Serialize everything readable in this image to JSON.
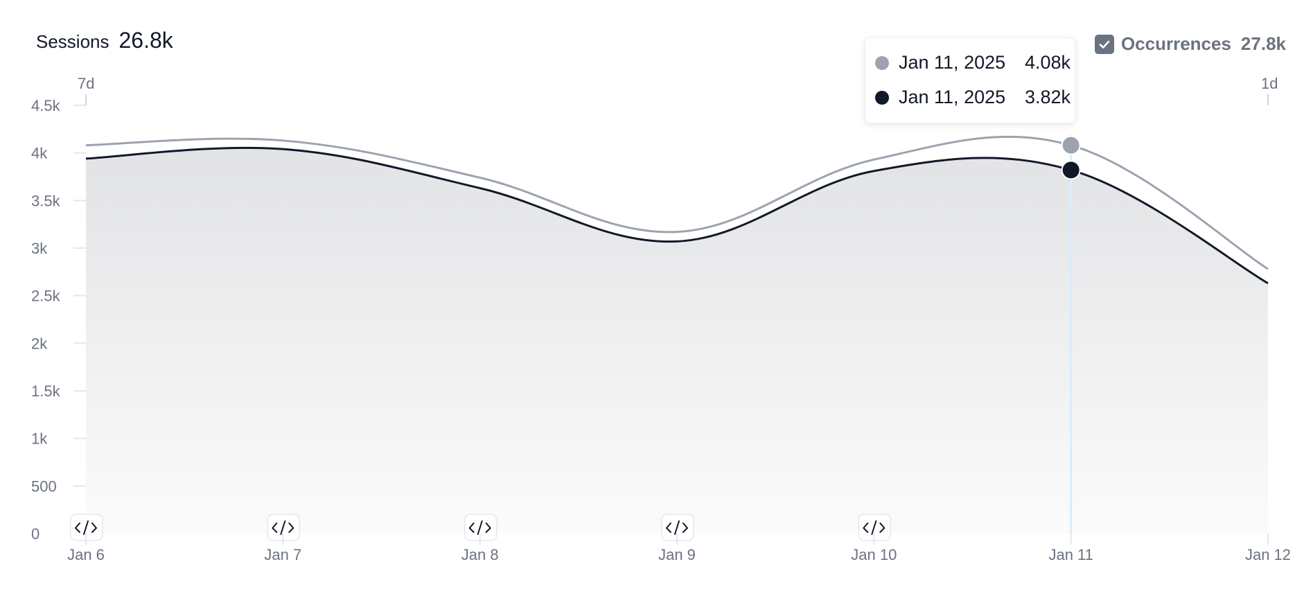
{
  "header": {
    "title": "Sessions",
    "total": "26.8k"
  },
  "legend": {
    "label": "Occurrences",
    "value": "27.8k",
    "checked": true,
    "color": "#6b7280"
  },
  "tooltip": {
    "rows": [
      {
        "date": "Jan 11, 2025",
        "value": "4.08k",
        "color": "#9ca3af"
      },
      {
        "date": "Jan 11, 2025",
        "value": "3.82k",
        "color": "#111827"
      }
    ]
  },
  "range_labels": {
    "left": "7d",
    "right": "1d"
  },
  "markers": [
    "Jan 6",
    "Jan 7",
    "Jan 8",
    "Jan 9",
    "Jan 10"
  ],
  "marker_icon": "code-icon",
  "chart_data": {
    "type": "area",
    "categories": [
      "Jan 6",
      "Jan 7",
      "Jan 8",
      "Jan 9",
      "Jan 10",
      "Jan 11",
      "Jan 12"
    ],
    "series": [
      {
        "values": [
          4080,
          4130,
          3740,
          3170,
          3930,
          4080,
          2780
        ],
        "color": "#9ca3af"
      },
      {
        "values": [
          3940,
          4040,
          3630,
          3070,
          3810,
          3820,
          2630
        ],
        "color": "#111827"
      }
    ],
    "yticks": [
      {
        "v": 0,
        "label": "0"
      },
      {
        "v": 500,
        "label": "500"
      },
      {
        "v": 1000,
        "label": "1k"
      },
      {
        "v": 1500,
        "label": "1.5k"
      },
      {
        "v": 2000,
        "label": "2k"
      },
      {
        "v": 2500,
        "label": "2.5k"
      },
      {
        "v": 3000,
        "label": "3k"
      },
      {
        "v": 3500,
        "label": "3.5k"
      },
      {
        "v": 4000,
        "label": "4k"
      },
      {
        "v": 4500,
        "label": "4.5k"
      }
    ],
    "ylim": [
      0,
      4500
    ],
    "highlight_category": "Jan 11",
    "grid": false
  }
}
